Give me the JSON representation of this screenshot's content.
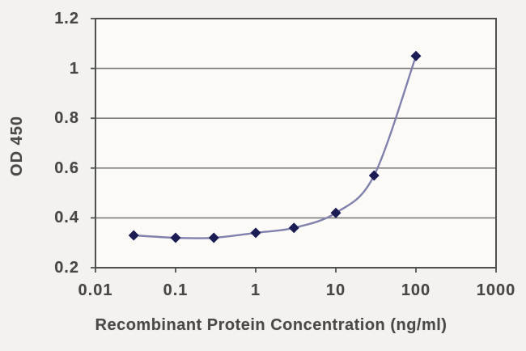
{
  "chart_data": {
    "type": "line",
    "title": "",
    "xlabel": "Recombinant Protein Concentration (ng/ml)",
    "ylabel": "OD 450",
    "x_scale": "log",
    "y_scale": "linear",
    "xlim": [
      0.01,
      1000
    ],
    "ylim": [
      0.2,
      1.2
    ],
    "x_ticks": [
      0.01,
      0.1,
      1,
      10,
      100,
      1000
    ],
    "x_tick_labels": [
      "0.01",
      "0.1",
      "1",
      "10",
      "100",
      "1000"
    ],
    "y_ticks": [
      0.2,
      0.4,
      0.6,
      0.8,
      1,
      1.2
    ],
    "y_tick_labels": [
      "0.2",
      "0.4",
      "0.6",
      "0.8",
      "1",
      "1.2"
    ],
    "grid": "horizontal",
    "legend_position": "none",
    "series": [
      {
        "name": "OD 450",
        "marker": "diamond",
        "x": [
          0.03,
          0.1,
          0.3,
          1,
          3,
          10,
          30,
          100
        ],
        "y": [
          0.33,
          0.32,
          0.32,
          0.34,
          0.36,
          0.42,
          0.57,
          1.05
        ]
      }
    ],
    "colors": {
      "line": "#8181ad",
      "marker": "#1c1c55",
      "grid": "#7d7d7d",
      "axis_border": "#4f4f4f",
      "text": "#474645",
      "figure_background": "#f3f2ee",
      "plot_background": "#fbfaf7"
    }
  }
}
